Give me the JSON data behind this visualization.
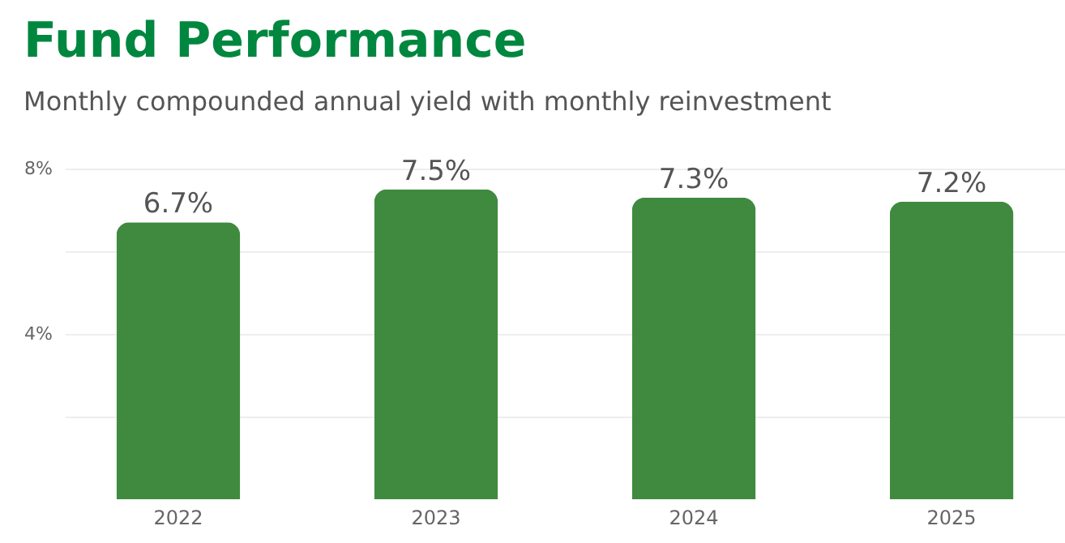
{
  "chart_data": {
    "type": "bar",
    "title": "Fund Performance",
    "subtitle": "Monthly compounded annual yield with monthly reinvestment",
    "categories": [
      "2022",
      "2023",
      "2024",
      "2025"
    ],
    "values": [
      6.7,
      7.5,
      7.3,
      7.2
    ],
    "value_labels": [
      "6.7%",
      "7.5%",
      "7.3%",
      "7.2%"
    ],
    "color": "#3f8a3f",
    "ylim": [
      0,
      8
    ],
    "yticks": [
      {
        "value": 2,
        "label": null
      },
      {
        "value": 4,
        "label": "4%"
      },
      {
        "value": 6,
        "label": null
      },
      {
        "value": 8,
        "label": "8%"
      }
    ],
    "grid": "y"
  }
}
